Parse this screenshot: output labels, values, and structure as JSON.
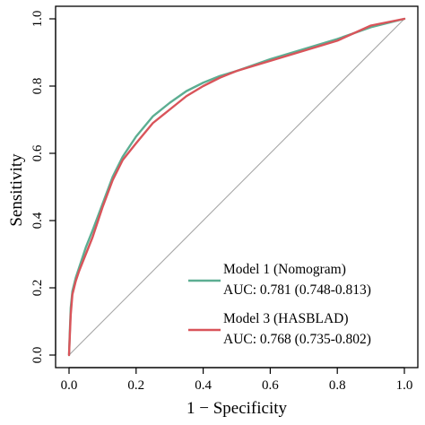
{
  "chart_data": {
    "type": "line",
    "xlabel": "1 − Specificity",
    "ylabel": "Sensitivity",
    "xlim": [
      0,
      1
    ],
    "ylim": [
      0,
      1
    ],
    "x_ticks": [
      "0.0",
      "0.2",
      "0.4",
      "0.6",
      "0.8",
      "1.0"
    ],
    "y_ticks": [
      "0.0",
      "0.2",
      "0.4",
      "0.6",
      "0.8",
      "1.0"
    ],
    "grid": false,
    "legend_position": "bottom-right",
    "reference_line": {
      "x": [
        0,
        1
      ],
      "y": [
        0,
        1
      ],
      "color": "#a6a6a6"
    },
    "series": [
      {
        "legend_line1": "Model 1 (Nomogram)",
        "legend_line2": "AUC: 0.781 (0.748-0.813)",
        "color": "#5cae92",
        "x": [
          0,
          0.002,
          0.005,
          0.01,
          0.02,
          0.03,
          0.05,
          0.07,
          0.1,
          0.13,
          0.16,
          0.2,
          0.25,
          0.3,
          0.35,
          0.4,
          0.45,
          0.5,
          0.6,
          0.7,
          0.8,
          0.9,
          1.0
        ],
        "y": [
          0,
          0.06,
          0.14,
          0.19,
          0.23,
          0.26,
          0.32,
          0.37,
          0.45,
          0.53,
          0.59,
          0.65,
          0.71,
          0.75,
          0.785,
          0.81,
          0.83,
          0.845,
          0.88,
          0.91,
          0.94,
          0.975,
          1.0
        ]
      },
      {
        "legend_line1": "Model 3 (HASBLAD)",
        "legend_line2": "AUC: 0.768 (0.735-0.802)",
        "color": "#d9545a",
        "x": [
          0,
          0.002,
          0.005,
          0.01,
          0.02,
          0.03,
          0.05,
          0.07,
          0.1,
          0.13,
          0.16,
          0.2,
          0.25,
          0.3,
          0.35,
          0.4,
          0.45,
          0.5,
          0.6,
          0.7,
          0.8,
          0.9,
          1.0
        ],
        "y": [
          0,
          0.05,
          0.12,
          0.18,
          0.22,
          0.25,
          0.3,
          0.35,
          0.44,
          0.52,
          0.58,
          0.63,
          0.69,
          0.73,
          0.77,
          0.8,
          0.825,
          0.845,
          0.875,
          0.905,
          0.935,
          0.98,
          1.0
        ]
      }
    ]
  }
}
